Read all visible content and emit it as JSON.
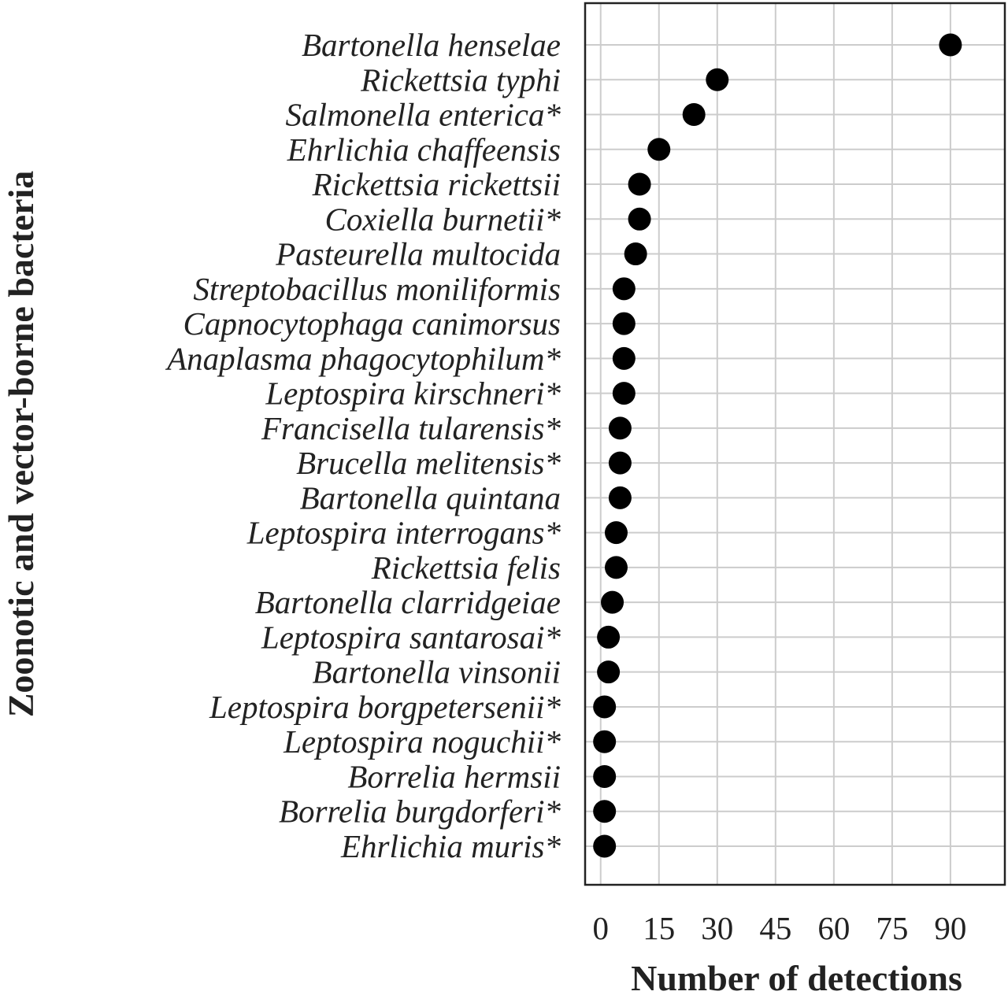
{
  "chart_data": {
    "type": "scatter",
    "xlabel": "Number of detections",
    "ylabel": "Zoonotic and vector-borne bacteria",
    "xlim": [
      -4,
      104
    ],
    "xticks": [
      0,
      15,
      30,
      45,
      60,
      75,
      90
    ],
    "grid": true,
    "legend": "none",
    "point_color": "#000000",
    "grid_color": "#cccccc",
    "categories": [
      "Bartonella henselae",
      "Rickettsia typhi",
      "Salmonella enterica*",
      "Ehrlichia chaffeensis",
      "Rickettsia rickettsii",
      "Coxiella burnetii*",
      "Pasteurella multocida",
      "Streptobacillus moniliformis",
      "Capnocytophaga canimorsus",
      "Anaplasma phagocytophilum*",
      "Leptospira kirschneri*",
      "Francisella tularensis*",
      "Brucella melitensis*",
      "Bartonella quintana",
      "Leptospira interrogans*",
      "Rickettsia felis",
      "Bartonella clarridgeiae",
      "Leptospira santarosai*",
      "Bartonella vinsonii",
      "Leptospira borgpetersenii*",
      "Leptospira noguchii*",
      "Borrelia hermsii",
      "Borrelia burgdorferi*",
      "Ehrlichia muris*"
    ],
    "values": [
      90,
      30,
      24,
      15,
      10,
      10,
      9,
      6,
      6,
      6,
      6,
      5,
      5,
      5,
      4,
      4,
      3,
      2,
      2,
      1,
      1,
      1,
      1,
      1
    ]
  }
}
